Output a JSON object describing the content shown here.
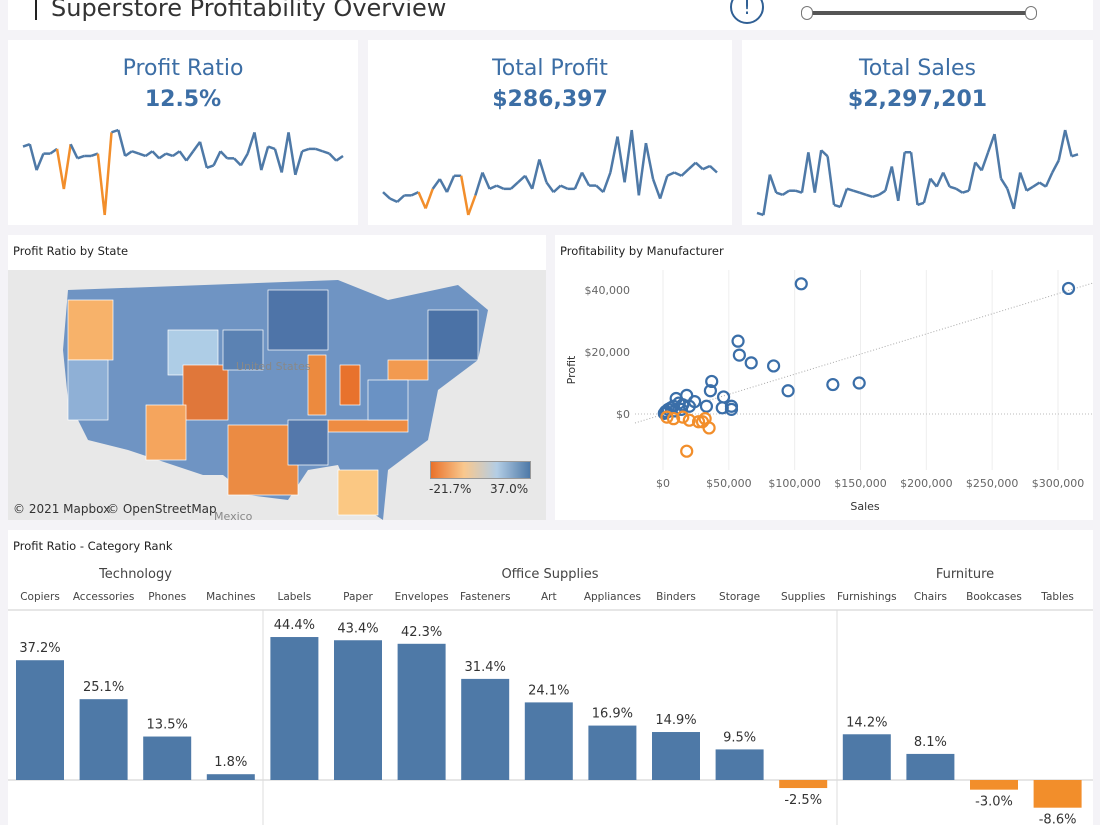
{
  "header": {
    "title": "Superstore Profitability Overview",
    "info_icon": "info-circle-icon"
  },
  "colors": {
    "positive": "#4e79a7",
    "negative": "#f28e2b",
    "kpi_text": "#3c6ea5"
  },
  "kpis": [
    {
      "label": "Profit Ratio",
      "value": "12.5%",
      "trend": [
        15,
        16,
        5,
        12,
        12,
        14,
        -3,
        16,
        10,
        11,
        11,
        12,
        -14,
        21,
        22,
        11,
        13,
        12,
        11,
        13,
        10,
        12,
        11,
        13,
        9,
        13,
        17,
        6,
        7,
        13,
        10,
        10,
        7,
        12,
        21,
        5,
        15,
        14,
        4,
        21,
        3,
        13,
        14,
        14,
        13,
        12,
        9,
        11
      ]
    },
    {
      "label": "Total Profit",
      "value": "$286,397",
      "trend": [
        3,
        1,
        0,
        2,
        2,
        3,
        -2,
        4,
        7,
        3,
        8,
        8,
        -4,
        2,
        9,
        4,
        5,
        4,
        4,
        6,
        8,
        4,
        13,
        6,
        3,
        5,
        4,
        4,
        9,
        5,
        5,
        3,
        9,
        20,
        6,
        22,
        2,
        18,
        7,
        1,
        8,
        9,
        8,
        10,
        12,
        10,
        11,
        9
      ]
    },
    {
      "label": "Total Sales",
      "value": "$2,297,201",
      "trend": [
        5,
        4,
        24,
        15,
        14,
        16,
        16,
        15,
        35,
        15,
        36,
        33,
        9,
        8,
        17,
        16,
        15,
        14,
        13,
        14,
        16,
        28,
        11,
        35,
        35,
        9,
        10,
        22,
        18,
        25,
        18,
        17,
        15,
        16,
        30,
        26,
        35,
        44,
        22,
        17,
        7,
        25,
        16,
        18,
        20,
        18,
        25,
        31,
        46,
        33,
        34
      ]
    }
  ],
  "map": {
    "title": "Profit Ratio by State",
    "legend_min": "-21.7%",
    "legend_max": "37.0%",
    "attribution_1": "© 2021 Mapbox",
    "attribution_2": "© OpenStreetMap",
    "label_country": "United States",
    "label_city": "Mexico"
  },
  "scatter": {
    "title": "Profitability by Manufacturer"
  },
  "chart_data": [
    {
      "type": "scatter",
      "title": "Profitability by Manufacturer",
      "xlabel": "Sales",
      "ylabel": "Profit",
      "xlim": [
        0,
        300000
      ],
      "ylim": [
        -15000,
        45000
      ],
      "x_ticks": [
        "$0",
        "$50,000",
        "$100,000",
        "$150,000",
        "$200,000",
        "$250,000",
        "$300,000"
      ],
      "y_ticks": [
        "$0",
        "$20,000",
        "$40,000"
      ],
      "trend_line": true,
      "points": [
        [
          105000,
          42000
        ],
        [
          308000,
          40500
        ],
        [
          57000,
          23500
        ],
        [
          58000,
          19000
        ],
        [
          67000,
          16500
        ],
        [
          84000,
          15500
        ],
        [
          95000,
          7500
        ],
        [
          129000,
          9500
        ],
        [
          149000,
          10000
        ],
        [
          37000,
          10500
        ],
        [
          36000,
          7500
        ],
        [
          46000,
          5500
        ],
        [
          33000,
          2500
        ],
        [
          45000,
          2000
        ],
        [
          52000,
          2500
        ],
        [
          52000,
          1500
        ],
        [
          18000,
          6000
        ],
        [
          24000,
          4000
        ],
        [
          10000,
          5000
        ],
        [
          12000,
          3500
        ],
        [
          8000,
          2500
        ],
        [
          6000,
          2000
        ],
        [
          4000,
          1500
        ],
        [
          2000,
          800
        ],
        [
          15000,
          3000
        ],
        [
          20000,
          2500
        ],
        [
          14000,
          1500
        ],
        [
          9000,
          1000
        ],
        [
          1000,
          200
        ],
        [
          3000,
          600
        ],
        [
          18000,
          -12000
        ],
        [
          35000,
          -4500
        ],
        [
          32000,
          -1500
        ],
        [
          30000,
          -2500
        ],
        [
          27000,
          -2500
        ],
        [
          20000,
          -2000
        ],
        [
          8000,
          -1500
        ],
        [
          3000,
          -1000
        ],
        [
          15000,
          -1000
        ]
      ]
    },
    {
      "type": "bar",
      "title": "Profit Ratio - Category Rank",
      "groups": [
        {
          "name": "Technology",
          "categories": [
            "Copiers",
            "Accessories",
            "Phones",
            "Machines"
          ],
          "values": [
            37.2,
            25.1,
            13.5,
            1.8
          ]
        },
        {
          "name": "Office Supplies",
          "categories": [
            "Labels",
            "Paper",
            "Envelopes",
            "Fasteners",
            "Art",
            "Appliances",
            "Binders",
            "Storage",
            "Supplies"
          ],
          "values": [
            44.4,
            43.4,
            42.3,
            31.4,
            24.1,
            16.9,
            14.9,
            9.5,
            -2.5
          ]
        },
        {
          "name": "Furniture",
          "categories": [
            "Furnishings",
            "Chairs",
            "Bookcases",
            "Tables"
          ],
          "values": [
            14.2,
            8.1,
            -3.0,
            -8.6
          ]
        }
      ],
      "labels": [
        "37.2%",
        "25.1%",
        "13.5%",
        "1.8%",
        "44.4%",
        "43.4%",
        "42.3%",
        "31.4%",
        "24.1%",
        "16.9%",
        "14.9%",
        "9.5%",
        "-2.5%",
        "14.2%",
        "8.1%",
        "-3.0%",
        "-8.6%"
      ]
    }
  ]
}
